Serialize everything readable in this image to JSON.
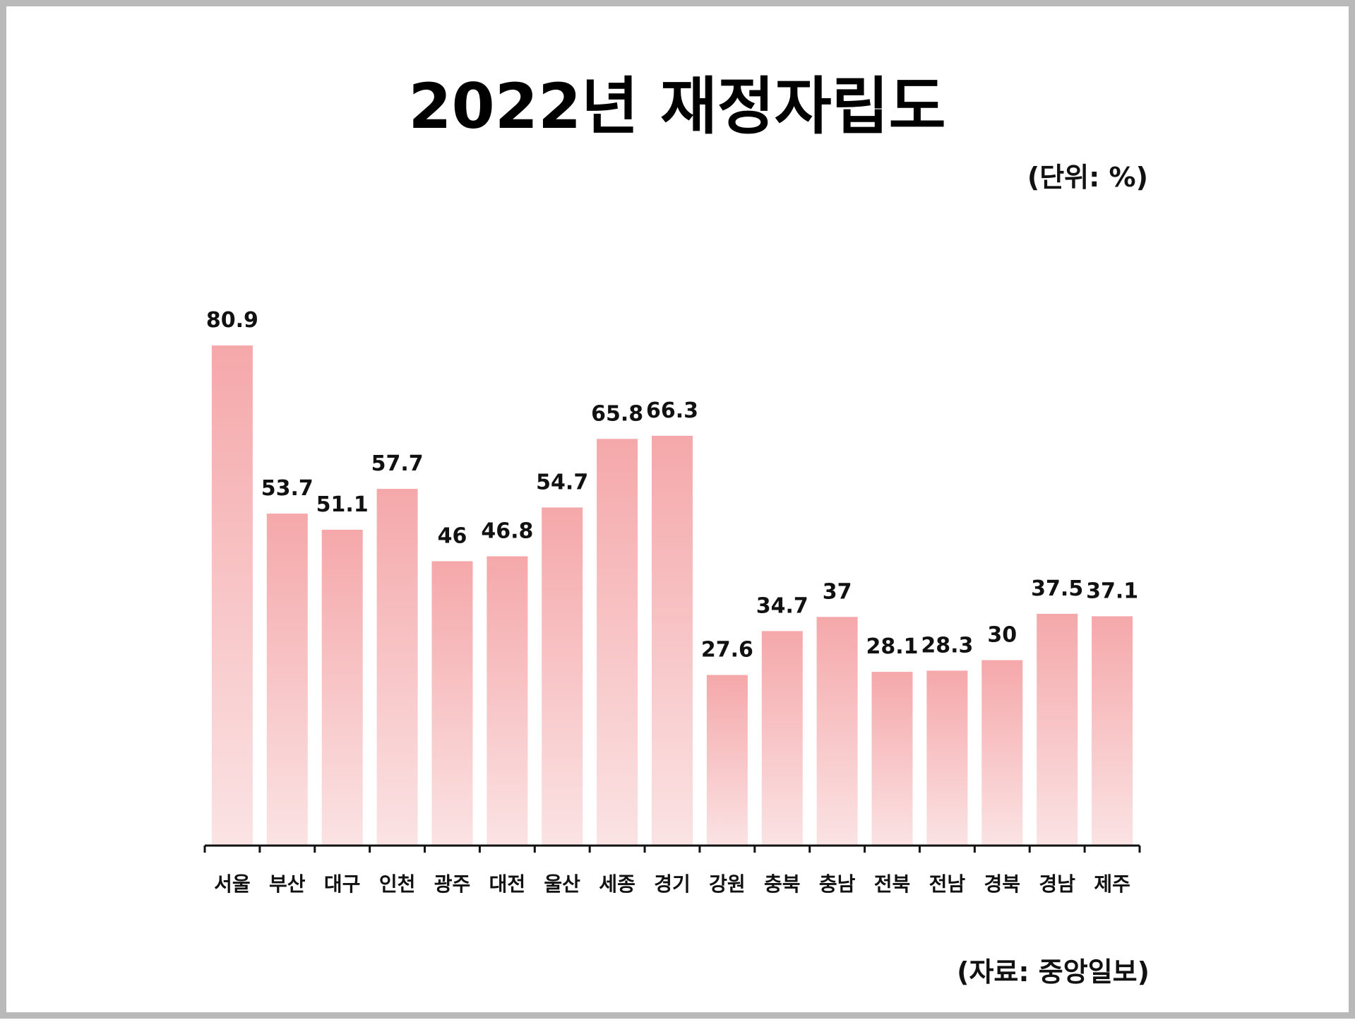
{
  "chart_data": {
    "type": "bar",
    "title": "2022년 재정자립도",
    "unit_label": "(단위: %)",
    "source_label": "(자료: 중앙일보)",
    "xlabel": "",
    "ylabel": "",
    "ylim": [
      0,
      100
    ],
    "grid": false,
    "bar_color_top": "#f5a8aa",
    "bar_color_bottom": "#fbe3e4",
    "categories": [
      "서울",
      "부산",
      "대구",
      "인천",
      "광주",
      "대전",
      "울산",
      "세종",
      "경기",
      "강원",
      "충북",
      "충남",
      "전북",
      "전남",
      "경북",
      "경남",
      "제주"
    ],
    "values": [
      80.9,
      53.7,
      51.1,
      57.7,
      46,
      46.8,
      54.7,
      65.8,
      66.3,
      27.6,
      34.7,
      37,
      28.1,
      28.3,
      30,
      37.5,
      37.1
    ],
    "value_labels": [
      "80.9",
      "53.7",
      "51.1",
      "57.7",
      "46",
      "46.8",
      "54.7",
      "65.8",
      "66.3",
      "27.6",
      "34.7",
      "37",
      "28.1",
      "28.3",
      "30",
      "37.5",
      "37.1"
    ]
  }
}
